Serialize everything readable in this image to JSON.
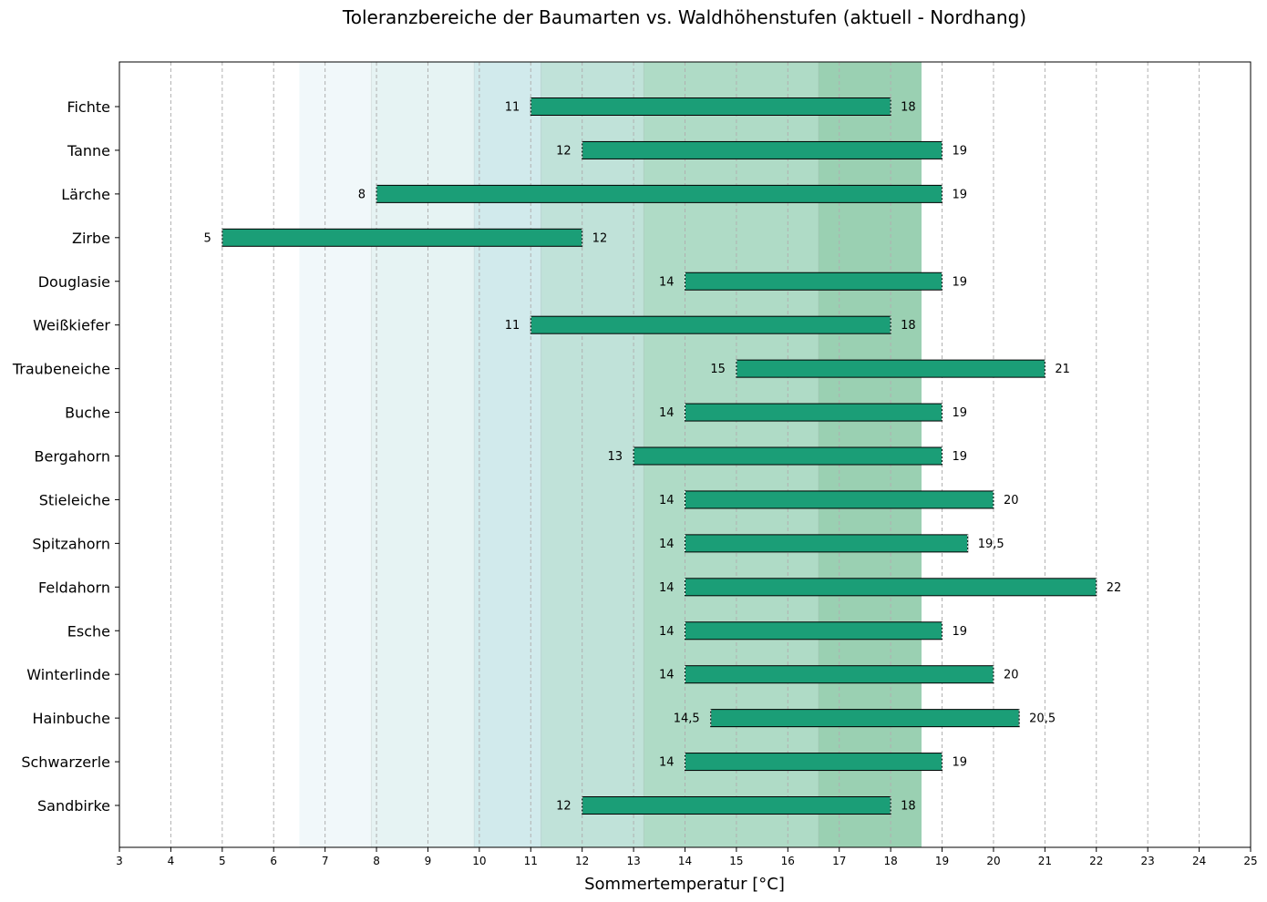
{
  "chart_data": {
    "type": "bar",
    "orientation": "horizontal-range",
    "title": "Toleranzbereiche der Baumarten vs. Waldhöhenstufen (aktuell - Nordhang)",
    "xlabel": "Sommertemperatur [°C]",
    "ylabel": "",
    "xlim": [
      3,
      25
    ],
    "xticks": [
      3,
      4,
      5,
      6,
      7,
      8,
      9,
      10,
      11,
      12,
      13,
      14,
      15,
      16,
      17,
      18,
      19,
      20,
      21,
      22,
      23,
      24,
      25
    ],
    "grid": "vertical-dashed",
    "bar_color": "#1b9e77",
    "categories": [
      "Fichte",
      "Tanne",
      "Lärche",
      "Zirbe",
      "Douglasie",
      "Weißkiefer",
      "Traubeneiche",
      "Buche",
      "Bergahorn",
      "Stieleiche",
      "Spitzahorn",
      "Feldahorn",
      "Esche",
      "Winterlinde",
      "Hainbuche",
      "Schwarzerle",
      "Sandbirke"
    ],
    "ranges": [
      {
        "min": 11,
        "max": 18,
        "min_label": "11",
        "max_label": "18"
      },
      {
        "min": 12,
        "max": 19,
        "min_label": "12",
        "max_label": "19"
      },
      {
        "min": 8,
        "max": 19,
        "min_label": "8",
        "max_label": "19"
      },
      {
        "min": 5,
        "max": 12,
        "min_label": "5",
        "max_label": "12"
      },
      {
        "min": 14,
        "max": 19,
        "min_label": "14",
        "max_label": "19"
      },
      {
        "min": 11,
        "max": 18,
        "min_label": "11",
        "max_label": "18"
      },
      {
        "min": 15,
        "max": 21,
        "min_label": "15",
        "max_label": "21"
      },
      {
        "min": 14,
        "max": 19,
        "min_label": "14",
        "max_label": "19"
      },
      {
        "min": 13,
        "max": 19,
        "min_label": "13",
        "max_label": "19"
      },
      {
        "min": 14,
        "max": 20,
        "min_label": "14",
        "max_label": "20"
      },
      {
        "min": 14,
        "max": 19.5,
        "min_label": "14",
        "max_label": "19,5"
      },
      {
        "min": 14,
        "max": 22,
        "min_label": "14",
        "max_label": "22"
      },
      {
        "min": 14,
        "max": 19,
        "min_label": "14",
        "max_label": "19"
      },
      {
        "min": 14,
        "max": 20,
        "min_label": "14",
        "max_label": "20"
      },
      {
        "min": 14.5,
        "max": 20.5,
        "min_label": "14,5",
        "max_label": "20,5"
      },
      {
        "min": 14,
        "max": 19,
        "min_label": "14",
        "max_label": "19"
      },
      {
        "min": 12,
        "max": 18,
        "min_label": "12",
        "max_label": "18"
      }
    ],
    "zones": [
      {
        "from": 6.5,
        "to": 7.9,
        "color": "#f1f8fa"
      },
      {
        "from": 7.9,
        "to": 9.9,
        "color": "#e6f3f3"
      },
      {
        "from": 9.9,
        "to": 11.2,
        "color": "#d1eaec"
      },
      {
        "from": 11.2,
        "to": 13.2,
        "color": "#c0e2d9"
      },
      {
        "from": 13.2,
        "to": 16.6,
        "color": "#afdbc6"
      },
      {
        "from": 16.6,
        "to": 18.6,
        "color": "#9ad0b2"
      }
    ]
  }
}
